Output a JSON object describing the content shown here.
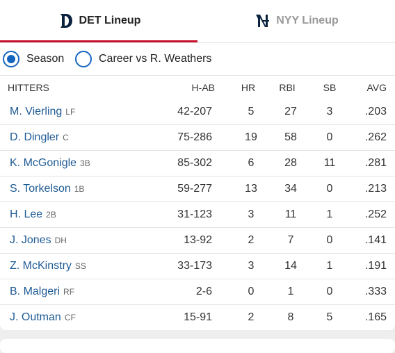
{
  "tabs": [
    {
      "label": "DET Lineup",
      "active": true
    },
    {
      "label": "NYY Lineup",
      "active": false
    }
  ],
  "options": [
    {
      "label": "Season",
      "selected": true
    },
    {
      "label": "Career vs R. Weathers",
      "selected": false
    }
  ],
  "table": {
    "headers": [
      "HITTERS",
      "H-AB",
      "HR",
      "RBI",
      "SB",
      "AVG"
    ],
    "rows": [
      {
        "name": "M. Vierling",
        "pos": "LF",
        "stats": [
          "42-207",
          "5",
          "27",
          "3",
          ".203"
        ]
      },
      {
        "name": "D. Dingler",
        "pos": "C",
        "stats": [
          "75-286",
          "19",
          "58",
          "0",
          ".262"
        ]
      },
      {
        "name": "K. McGonigle",
        "pos": "3B",
        "stats": [
          "85-302",
          "6",
          "28",
          "11",
          ".281"
        ]
      },
      {
        "name": "S. Torkelson",
        "pos": "1B",
        "stats": [
          "59-277",
          "13",
          "34",
          "0",
          ".213"
        ]
      },
      {
        "name": "H. Lee",
        "pos": "2B",
        "stats": [
          "31-123",
          "3",
          "11",
          "1",
          ".252"
        ]
      },
      {
        "name": "J. Jones",
        "pos": "DH",
        "stats": [
          "13-92",
          "2",
          "7",
          "0",
          ".141"
        ]
      },
      {
        "name": "Z. McKinstry",
        "pos": "SS",
        "stats": [
          "33-173",
          "3",
          "14",
          "1",
          ".191"
        ]
      },
      {
        "name": "B. Malgeri",
        "pos": "RF",
        "stats": [
          "2-6",
          "0",
          "1",
          "0",
          ".333"
        ]
      },
      {
        "name": "J. Outman",
        "pos": "CF",
        "stats": [
          "15-91",
          "2",
          "8",
          "5",
          ".165"
        ]
      }
    ]
  }
}
